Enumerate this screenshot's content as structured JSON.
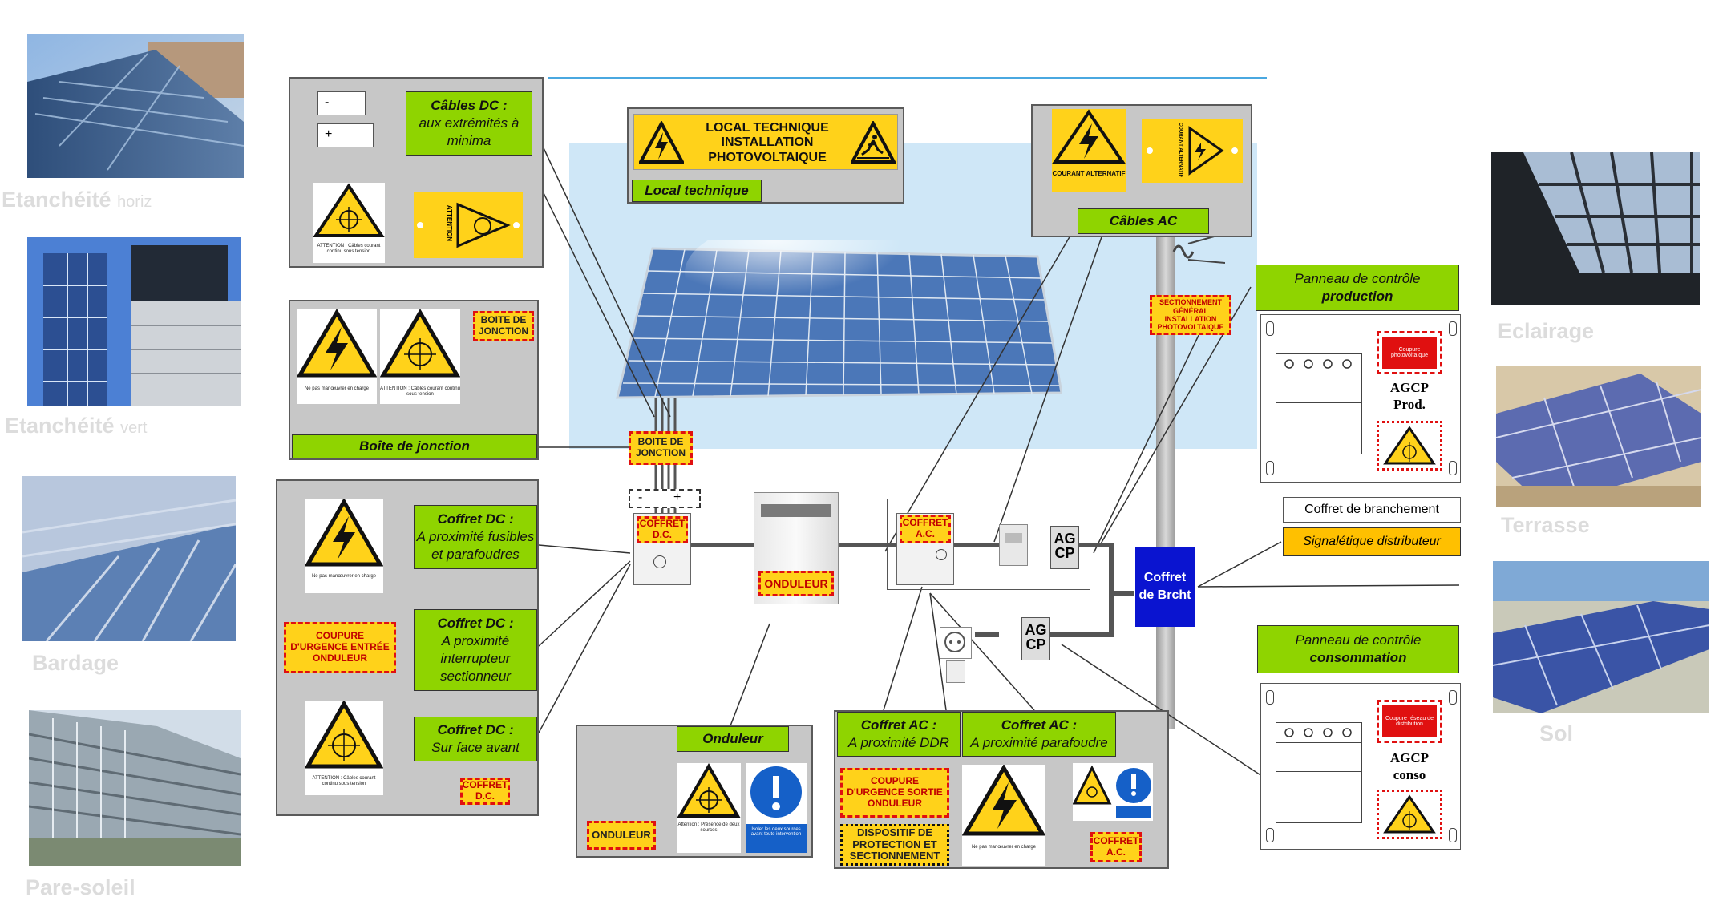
{
  "photos": [
    {
      "name": "Etanchéité",
      "suffix": "horiz"
    },
    {
      "name": "Etanchéité",
      "suffix": "vert"
    },
    {
      "name": "Bardage"
    },
    {
      "name": "Pare-soleil"
    },
    {
      "name": "Eclairage"
    },
    {
      "name": "Terrasse"
    },
    {
      "name": "Sol"
    }
  ],
  "cables_dc": {
    "minus": "-",
    "plus": "+",
    "title": "Câbles DC :",
    "desc": "aux extrémités à minima",
    "sign_text": "ATTENTION : Câbles courant continu sous tension",
    "sign_rot_text": "ATTENTION"
  },
  "local_tech": {
    "sign_title": "LOCAL TECHNIQUE INSTALLATION PHOTOVOLTAIQUE",
    "label": "Local technique"
  },
  "cables_ac": {
    "sign_text": "COURANT ALTERNATIF",
    "sign_rot_text": "COURANT ALTERNATIF",
    "label": "Câbles AC"
  },
  "boite": {
    "sign1_text": "Ne pas manœuvrer en charge",
    "sign2_text": "ATTENTION : Câbles courant continu sous tension",
    "tag": "BOITE DE JONCTION",
    "label": "Boîte de jonction"
  },
  "coffret_dc": {
    "title": "Coffret DC :",
    "items": [
      "A proximité fusibles et parafoudres",
      "A proximité interrupteur sectionneur",
      "Sur face avant"
    ],
    "sign1_text": "Ne pas manœuvrer en charge",
    "urgence": "COUPURE D'URGENCE ENTRÉE ONDULEUR",
    "sign3_text": "ATTENTION : Câbles courant continu sous tension",
    "tag": "COFFRET D.C."
  },
  "diagram": {
    "boite_tag": "BOITE DE JONCTION",
    "minus": "-",
    "plus": "+",
    "coffret_dc_tag": "COFFRET D.C.",
    "onduleur_tag": "ONDULEUR",
    "coffret_ac_tag": "COFFRET A.C.",
    "agcp": "AG CP",
    "sectionnement": "SECTIONNEMENT GÉNÉRAL INSTALLATION PHOTOVOLTAIQUE",
    "brcht": "Coffret de Brcht"
  },
  "onduleur": {
    "label": "Onduleur",
    "tag": "ONDULEUR",
    "sign_text": "Attention : Présence de deux sources",
    "blue_text": "Isoler les deux sources avant toute intervention"
  },
  "coffret_ac": {
    "title": "Coffret AC :",
    "item1": "A proximité DDR",
    "item2": "A proximité  parafoudre",
    "urgence": "COUPURE D'URGENCE SORTIE ONDULEUR",
    "dispositif": "DISPOSITIF DE PROTECTION ET SECTIONNEMENT",
    "sign_text": "Ne pas manœuvrer en charge",
    "tag": "COFFRET A.C."
  },
  "panel_prod": {
    "title": "Panneau de contrôle",
    "strong": "production",
    "red_text": "Coupure photovoltaïque",
    "agcp1": "AGCP",
    "agcp2": "Prod."
  },
  "branchement": {
    "title": "Coffret de branchement",
    "label": "Signalétique distributeur"
  },
  "panel_conso": {
    "title": "Panneau de contrôle",
    "strong": "consommation",
    "red_text": "Coupure réseau de distribution",
    "agcp1": "AGCP",
    "agcp2": "conso"
  },
  "colors": {
    "green": "#8fd400",
    "yellow": "#ffd21a",
    "red": "#e01010",
    "blue": "#0a14d0",
    "gray": "#c7c7c7",
    "sky": "#cfe7f7"
  },
  "icons": [
    "high-voltage-icon",
    "solar-warning-icon",
    "slip-hazard-icon",
    "mandatory-info-icon",
    "outlet-icon"
  ]
}
